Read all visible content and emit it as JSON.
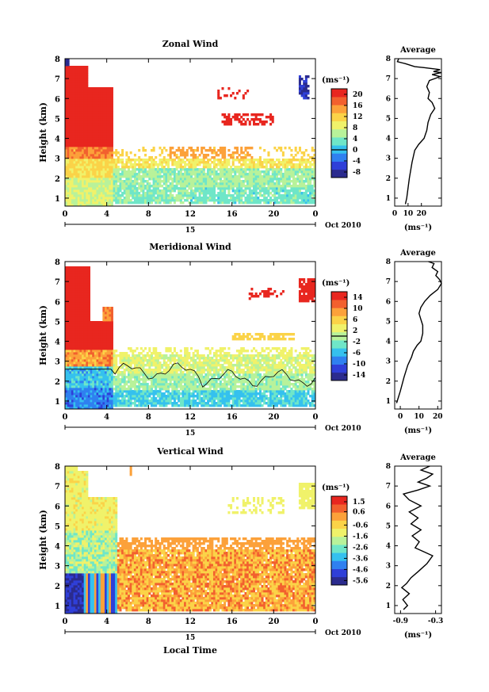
{
  "colors": {
    "colormap": [
      "#2b2b8e",
      "#2f3fd8",
      "#2f80f0",
      "#35c1ee",
      "#6fe6c8",
      "#b8f29a",
      "#f0f26a",
      "#fbd348",
      "#fca13a",
      "#f2602e",
      "#e8261f"
    ],
    "background": "#ffffff",
    "axis": "#000000"
  },
  "chart_data": [
    {
      "id": "zonal",
      "type": "heatmap",
      "title": "Zonal Wind",
      "ylabel": "Height (km)",
      "xlabel": "",
      "x_ticks": [
        "0",
        "4",
        "8",
        "12",
        "16",
        "20",
        "0"
      ],
      "y_ticks": [
        "1",
        "2",
        "3",
        "4",
        "5",
        "6",
        "7",
        "8"
      ],
      "xlim": [
        0,
        24
      ],
      "ylim": [
        0.6,
        8
      ],
      "date_day": "15",
      "date_label": "Oct 2010",
      "colorbar": {
        "unit": "(ms⁻¹)",
        "ticks": [
          "20",
          "16",
          "12",
          "8",
          "4",
          "0",
          "-4",
          "-8"
        ],
        "range": [
          -10,
          22
        ],
        "zero_line": 0
      },
      "field": "zonal",
      "profile": {
        "title": "Average",
        "xlabel": "(ms⁻¹)",
        "x_ticks": [
          "0",
          "10",
          "20"
        ],
        "xlim": [
          0,
          35
        ],
        "y_ticks": [
          "1",
          "2",
          "3",
          "4",
          "5",
          "6",
          "7",
          "8"
        ],
        "points": [
          [
            8,
            0.7
          ],
          [
            9,
            1.0
          ],
          [
            11,
            2.0
          ],
          [
            13,
            2.8
          ],
          [
            15,
            3.4
          ],
          [
            18,
            3.7
          ],
          [
            22,
            4.0
          ],
          [
            24,
            4.4
          ],
          [
            25,
            4.8
          ],
          [
            27,
            5.2
          ],
          [
            30,
            5.5
          ],
          [
            28,
            5.8
          ],
          [
            25,
            6.0
          ],
          [
            26,
            6.3
          ],
          [
            24,
            6.6
          ],
          [
            26,
            6.9
          ],
          [
            30,
            7.0
          ],
          [
            34,
            7.1
          ],
          [
            28,
            7.2
          ],
          [
            35,
            7.3
          ],
          [
            29,
            7.35
          ],
          [
            34,
            7.45
          ],
          [
            28,
            7.5
          ],
          [
            22,
            7.55
          ],
          [
            15,
            7.6
          ],
          [
            8,
            7.75
          ],
          [
            2,
            7.85
          ],
          [
            3,
            8.0
          ]
        ]
      }
    },
    {
      "id": "meridional",
      "type": "heatmap",
      "title": "Meridional Wind",
      "ylabel": "Height (km)",
      "xlabel": "",
      "x_ticks": [
        "0",
        "4",
        "8",
        "12",
        "16",
        "20",
        "0"
      ],
      "y_ticks": [
        "1",
        "2",
        "3",
        "4",
        "5",
        "6",
        "7",
        "8"
      ],
      "xlim": [
        0,
        24
      ],
      "ylim": [
        0.6,
        8
      ],
      "date_day": "15",
      "date_label": "Oct 2010",
      "colorbar": {
        "unit": "(ms⁻¹)",
        "ticks": [
          "14",
          "10",
          "6",
          "2",
          "-2",
          "-6",
          "-10",
          "-14"
        ],
        "range": [
          -16,
          16
        ],
        "zero_line": 0
      },
      "field": "meridional",
      "profile": {
        "title": "Average",
        "xlabel": "(ms⁻¹)",
        "x_ticks": [
          "0",
          "10",
          "20"
        ],
        "xlim": [
          -3,
          22
        ],
        "y_ticks": [
          "1",
          "2",
          "3",
          "4",
          "5",
          "6",
          "7",
          "8"
        ],
        "points": [
          [
            -2,
            0.9
          ],
          [
            0,
            1.5
          ],
          [
            2,
            2.2
          ],
          [
            4,
            2.8
          ],
          [
            6,
            3.2
          ],
          [
            7,
            3.5
          ],
          [
            9,
            3.8
          ],
          [
            11,
            4.0
          ],
          [
            12,
            4.4
          ],
          [
            12,
            4.8
          ],
          [
            11,
            5.1
          ],
          [
            10,
            5.4
          ],
          [
            11,
            5.7
          ],
          [
            13,
            6.0
          ],
          [
            16,
            6.3
          ],
          [
            20,
            6.6
          ],
          [
            22,
            6.9
          ],
          [
            21,
            7.1
          ],
          [
            19,
            7.3
          ],
          [
            20,
            7.5
          ],
          [
            17,
            7.7
          ],
          [
            18,
            7.9
          ],
          [
            15,
            8.0
          ]
        ]
      }
    },
    {
      "id": "vertical",
      "type": "heatmap",
      "title": "Vertical Wind",
      "ylabel": "Height (km)",
      "xlabel": "Local Time",
      "x_ticks": [
        "0",
        "4",
        "8",
        "12",
        "16",
        "20",
        "0"
      ],
      "y_ticks": [
        "1",
        "2",
        "3",
        "4",
        "5",
        "6",
        "7",
        "8"
      ],
      "xlim": [
        0,
        24
      ],
      "ylim": [
        0.6,
        8
      ],
      "date_day": "15",
      "date_label": "Oct 2010",
      "colorbar": {
        "unit": "(ms⁻¹)",
        "ticks": [
          "1.5",
          "0.6",
          "-0.6",
          "-1.6",
          "-2.6",
          "-3.6",
          "-4.6",
          "-5.6"
        ],
        "range": [
          -6,
          2
        ],
        "zero_line": null
      },
      "field": "vertical",
      "profile": {
        "title": "Average",
        "xlabel": "(ms⁻¹)",
        "x_ticks": [
          "-0.9",
          "-0.3"
        ],
        "xlim": [
          -1.0,
          -0.2
        ],
        "y_ticks": [
          "1",
          "2",
          "3",
          "4",
          "5",
          "6",
          "7",
          "8"
        ],
        "points": [
          [
            -0.85,
            0.8
          ],
          [
            -0.78,
            1.0
          ],
          [
            -0.86,
            1.3
          ],
          [
            -0.75,
            1.6
          ],
          [
            -0.88,
            1.9
          ],
          [
            -0.8,
            2.1
          ],
          [
            -0.72,
            2.4
          ],
          [
            -0.6,
            2.7
          ],
          [
            -0.45,
            3.1
          ],
          [
            -0.35,
            3.5
          ],
          [
            -0.5,
            3.7
          ],
          [
            -0.65,
            3.9
          ],
          [
            -0.58,
            4.2
          ],
          [
            -0.7,
            4.5
          ],
          [
            -0.55,
            4.8
          ],
          [
            -0.72,
            5.1
          ],
          [
            -0.6,
            5.4
          ],
          [
            -0.75,
            5.7
          ],
          [
            -0.55,
            6.0
          ],
          [
            -0.75,
            6.3
          ],
          [
            -0.85,
            6.6
          ],
          [
            -0.6,
            6.8
          ],
          [
            -0.4,
            7.0
          ],
          [
            -0.6,
            7.2
          ],
          [
            -0.45,
            7.4
          ],
          [
            -0.35,
            7.6
          ],
          [
            -0.55,
            7.8
          ],
          [
            -0.4,
            8.0
          ]
        ]
      }
    }
  ]
}
